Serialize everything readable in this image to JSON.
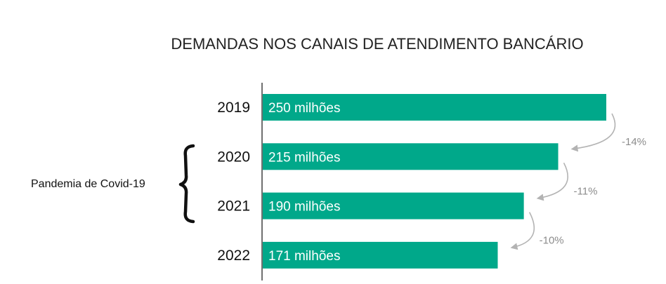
{
  "chart_data": {
    "type": "bar",
    "orientation": "horizontal",
    "title": "DEMANDAS NOS CANAIS DE ATENDIMENTO BANCÁRIO",
    "categories": [
      "2019",
      "2020",
      "2021",
      "2022"
    ],
    "values": [
      250,
      215,
      190,
      171
    ],
    "unit": "milhões",
    "data_labels": [
      "250 milhões",
      "215 milhões",
      "190 milhões",
      "171 milhões"
    ],
    "changes": [
      "-14%",
      "-11%",
      "-10%"
    ],
    "annotation": {
      "label": "Pandemia de Covid-19",
      "spans": [
        "2020",
        "2021"
      ]
    },
    "xlim": [
      0,
      250
    ],
    "bar_color": "#00a88a",
    "arrow_color": "#b3b3b3",
    "xlabel": "",
    "ylabel": ""
  }
}
